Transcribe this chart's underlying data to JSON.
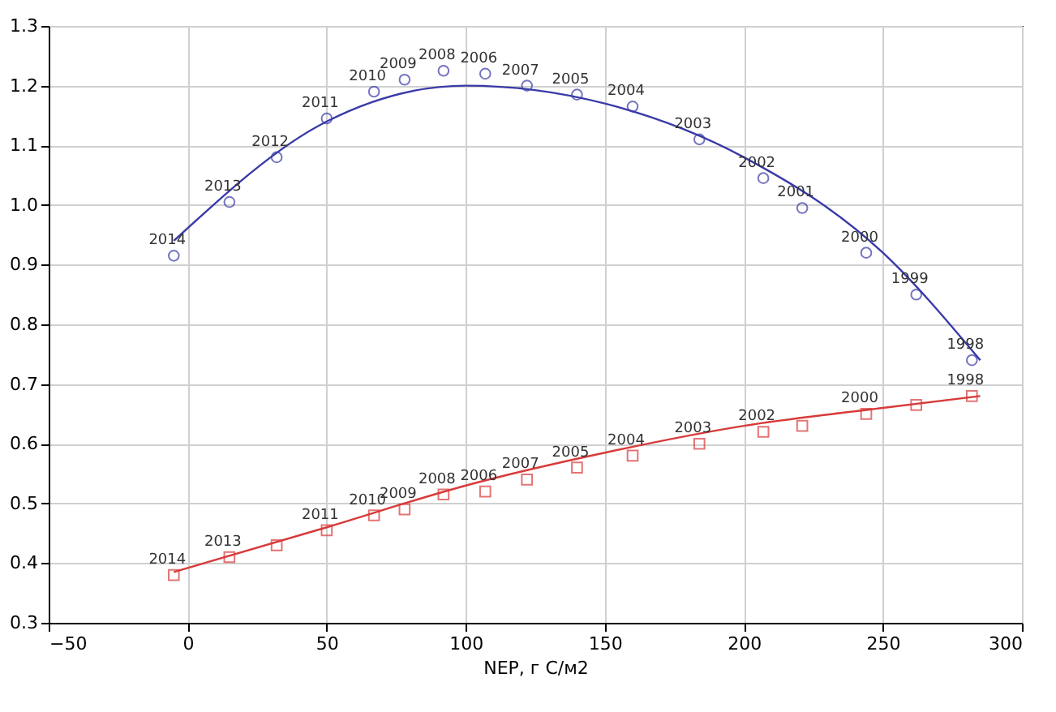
{
  "chart_data": {
    "type": "scatter",
    "xlabel": "NEP, г C/м2",
    "xlim": [
      -50,
      300
    ],
    "xticks": [
      -50,
      0,
      50,
      100,
      150,
      200,
      250,
      300
    ],
    "ylim": [
      0.3,
      1.3
    ],
    "yticks": [
      0.3,
      0.4,
      0.5,
      0.6,
      0.7,
      0.8,
      0.9,
      {
        "value": 1.0,
        "label": "1.0"
      },
      1.1,
      1.2,
      1.3
    ],
    "grid": true,
    "series": [
      {
        "marker": "circle",
        "color": "#3a3aa8",
        "x": [
          -5,
          15,
          32,
          50,
          67,
          78,
          92,
          107,
          122,
          140,
          160,
          184,
          207,
          221,
          244,
          262,
          282
        ],
        "values": [
          0.915,
          1.005,
          1.08,
          1.145,
          1.19,
          1.21,
          1.225,
          1.22,
          1.2,
          1.185,
          1.165,
          1.11,
          1.045,
          0.995,
          0.92,
          0.85,
          0.74
        ]
      },
      {
        "marker": "square",
        "color": "#d83a3a",
        "x": [
          -5,
          15,
          32,
          50,
          67,
          78,
          92,
          107,
          122,
          140,
          160,
          184,
          207,
          221,
          244,
          262,
          282
        ],
        "values": [
          0.38,
          0.41,
          0.43,
          0.455,
          0.48,
          0.49,
          0.515,
          0.52,
          0.54,
          0.56,
          0.58,
          0.6,
          0.62,
          0.63,
          0.65,
          0.665,
          0.68
        ]
      },
      {
        "type": "line",
        "marker": "none",
        "color": "#3a3aa8",
        "x": [
          -5,
          50,
          100,
          150,
          200,
          250,
          285
        ],
        "values": [
          0.94,
          1.14,
          1.2,
          1.17,
          1.08,
          0.92,
          0.74
        ]
      },
      {
        "type": "line",
        "marker": "none",
        "color": "#d83a3a",
        "x": [
          -5,
          50,
          100,
          150,
          200,
          250,
          285
        ],
        "values": [
          0.385,
          0.46,
          0.53,
          0.585,
          0.63,
          0.66,
          0.68
        ]
      }
    ],
    "annotations": [
      {
        "text": "2014",
        "x": -5,
        "y": 0.915
      },
      {
        "text": "2013",
        "x": 15,
        "y": 1.005
      },
      {
        "text": "2012",
        "x": 32,
        "y": 1.08
      },
      {
        "text": "2011",
        "x": 50,
        "y": 1.145
      },
      {
        "text": "2010",
        "x": 67,
        "y": 1.19
      },
      {
        "text": "2009",
        "x": 78,
        "y": 1.21
      },
      {
        "text": "2008",
        "x": 92,
        "y": 1.225
      },
      {
        "text": "2006",
        "x": 107,
        "y": 1.22
      },
      {
        "text": "2007",
        "x": 122,
        "y": 1.2
      },
      {
        "text": "2005",
        "x": 140,
        "y": 1.185
      },
      {
        "text": "2004",
        "x": 160,
        "y": 1.165
      },
      {
        "text": "2003",
        "x": 184,
        "y": 1.11
      },
      {
        "text": "2002",
        "x": 207,
        "y": 1.045
      },
      {
        "text": "2001",
        "x": 221,
        "y": 0.995
      },
      {
        "text": "2000",
        "x": 244,
        "y": 0.92
      },
      {
        "text": "1999",
        "x": 262,
        "y": 0.85
      },
      {
        "text": "1998",
        "x": 282,
        "y": 0.74
      },
      {
        "text": "2014",
        "x": -5,
        "y": 0.38
      },
      {
        "text": "2013",
        "x": 15,
        "y": 0.41
      },
      {
        "text": "2011",
        "x": 50,
        "y": 0.455
      },
      {
        "text": "2010",
        "x": 67,
        "y": 0.48
      },
      {
        "text": "2009",
        "x": 78,
        "y": 0.49
      },
      {
        "text": "2008",
        "x": 92,
        "y": 0.515
      },
      {
        "text": "2006",
        "x": 107,
        "y": 0.52
      },
      {
        "text": "2007",
        "x": 122,
        "y": 0.54
      },
      {
        "text": "2005",
        "x": 140,
        "y": 0.56
      },
      {
        "text": "2004",
        "x": 160,
        "y": 0.58
      },
      {
        "text": "2003",
        "x": 184,
        "y": 0.6
      },
      {
        "text": "2002",
        "x": 207,
        "y": 0.62
      },
      {
        "text": "2000",
        "x": 244,
        "y": 0.65
      },
      {
        "text": "1998",
        "x": 282,
        "y": 0.68
      }
    ]
  }
}
